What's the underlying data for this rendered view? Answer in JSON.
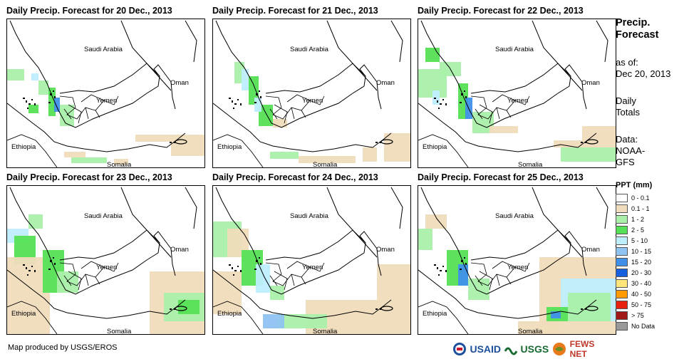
{
  "panels": [
    {
      "title": "Daily Precip. Forecast for 20 Dec., 2013",
      "day": 20
    },
    {
      "title": "Daily Precip. Forecast for 21 Dec., 2013",
      "day": 21
    },
    {
      "title": "Daily Precip. Forecast for 22 Dec., 2013",
      "day": 22
    },
    {
      "title": "Daily Precip. Forecast for 23 Dec., 2013",
      "day": 23
    },
    {
      "title": "Daily Precip. Forecast for 24 Dec., 2013",
      "day": 24
    },
    {
      "title": "Daily Precip. Forecast for 25 Dec., 2013",
      "day": 25
    }
  ],
  "map_labels": {
    "saudi": "Saudi Arabia",
    "oman": "Oman",
    "yemen": "Yemen",
    "ethiopia": "Ethiopia",
    "somalia": "Somalia"
  },
  "sidebar": {
    "title_line1": "Precip.",
    "title_line2": "Forecast",
    "asof_label": "as of:",
    "asof_date": "Dec 20, 2013",
    "totals_line1": "Daily",
    "totals_line2": "Totals",
    "data_label": "Data:",
    "data_line1": "NOAA-",
    "data_line2": "GFS"
  },
  "legend": {
    "title": "PPT (mm)",
    "items": [
      {
        "label": "0 - 0.1",
        "color": "#ffffff"
      },
      {
        "label": "0.1 - 1",
        "color": "#f0dcbc"
      },
      {
        "label": "1 - 2",
        "color": "#aaf0aa"
      },
      {
        "label": "2 - 5",
        "color": "#55e055"
      },
      {
        "label": "5 - 10",
        "color": "#bfeeff"
      },
      {
        "label": "10 - 15",
        "color": "#8fc3f2"
      },
      {
        "label": "15 - 20",
        "color": "#4090ea"
      },
      {
        "label": "20 - 30",
        "color": "#1660e0"
      },
      {
        "label": "30 - 40",
        "color": "#ffe57a"
      },
      {
        "label": "40 - 50",
        "color": "#ff9a00"
      },
      {
        "label": "50 - 75",
        "color": "#e82010"
      },
      {
        "label": "> 75",
        "color": "#a01818"
      },
      {
        "label": "No Data",
        "color": "#999999"
      }
    ]
  },
  "credit": "Map produced by USGS/EROS",
  "logos": {
    "usaid": "USAID",
    "usgs": "USGS",
    "fews": "FEWS NET"
  }
}
